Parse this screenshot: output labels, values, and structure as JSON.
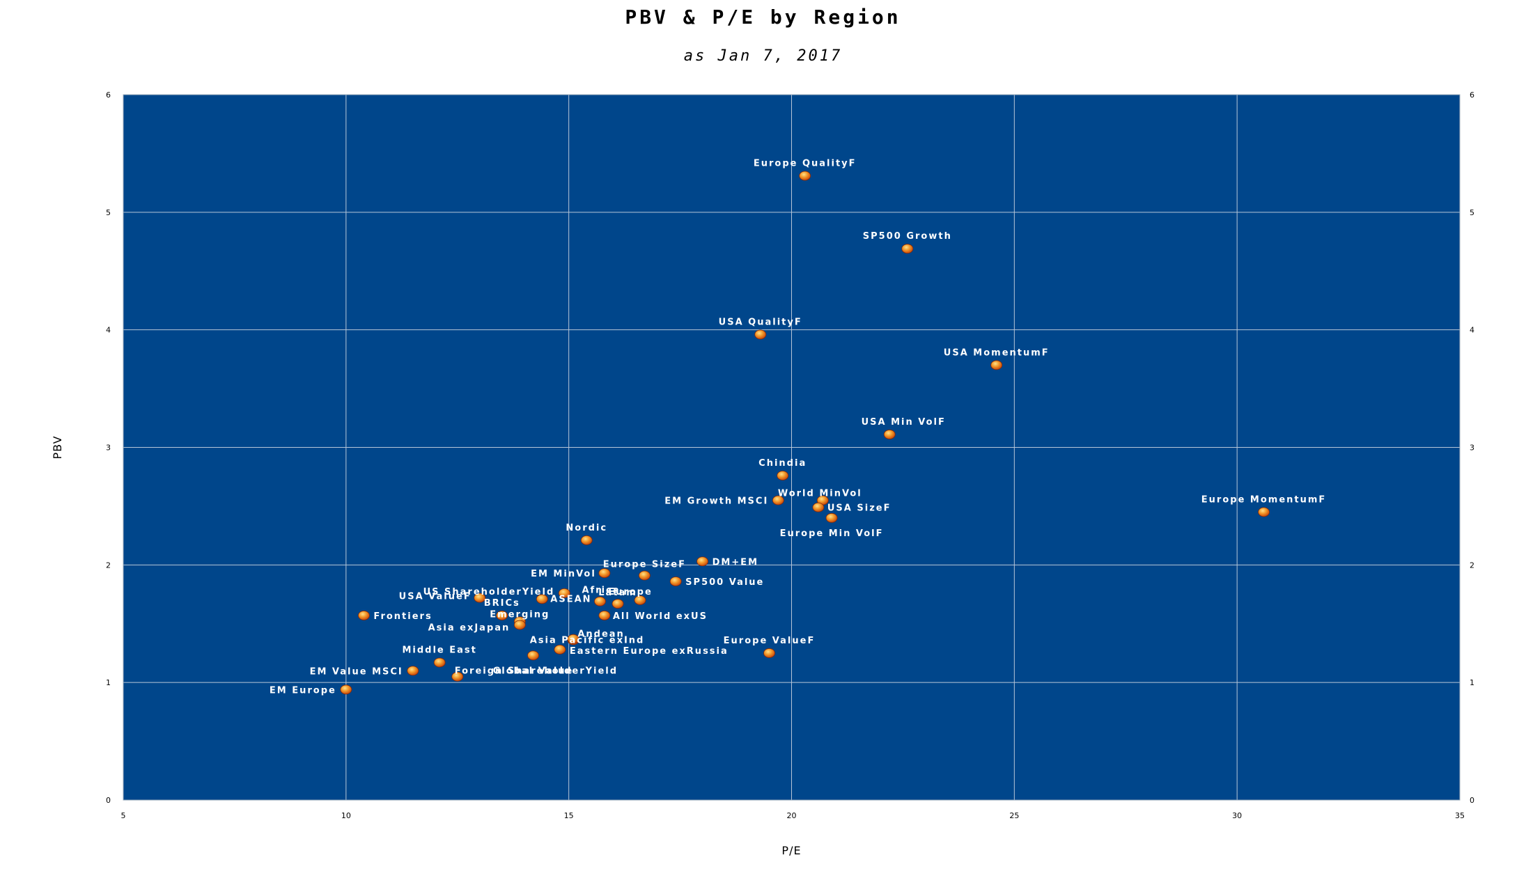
{
  "chart_data": {
    "type": "scatter",
    "title": "PBV & P/E by Region",
    "subtitle": "as Jan 7, 2017",
    "xlabel": "P/E",
    "ylabel": "PBV",
    "xlim": [
      5,
      35
    ],
    "ylim": [
      0,
      6
    ],
    "x_ticks": [
      "5",
      "10",
      "15",
      "20",
      "25",
      "30",
      "35"
    ],
    "y_ticks": [
      "0",
      "1",
      "2",
      "3",
      "4",
      "5",
      "6"
    ],
    "grid": true,
    "plot_background": "#00468b",
    "marker_color": "#f07020",
    "points": [
      {
        "label": "Europe QualityF",
        "x": 20.3,
        "y": 5.31
      },
      {
        "label": "SP500 Growth",
        "x": 22.6,
        "y": 4.69
      },
      {
        "label": "USA QualityF",
        "x": 19.3,
        "y": 3.96
      },
      {
        "label": "USA MomentumF",
        "x": 24.6,
        "y": 3.7
      },
      {
        "label": "USA Min VolF",
        "x": 22.2,
        "y": 3.11
      },
      {
        "label": "Chindia",
        "x": 19.8,
        "y": 2.76
      },
      {
        "label": "Europe MomentumF",
        "x": 30.6,
        "y": 2.45
      },
      {
        "label": "World MinVol",
        "x": 20.7,
        "y": 2.55
      },
      {
        "label": "EM Growth MSCI",
        "x": 19.7,
        "y": 2.55
      },
      {
        "label": "USA SizeF",
        "x": 20.6,
        "y": 2.49
      },
      {
        "label": "Europe Min VolF",
        "x": 20.9,
        "y": 2.4
      },
      {
        "label": "Nordic",
        "x": 15.4,
        "y": 2.21
      },
      {
        "label": "DM+EM",
        "x": 18.0,
        "y": 2.03
      },
      {
        "label": "Europe SizeF",
        "x": 16.7,
        "y": 1.91
      },
      {
        "label": "EM MinVol",
        "x": 15.8,
        "y": 1.93
      },
      {
        "label": "SP500 Value",
        "x": 17.4,
        "y": 1.86
      },
      {
        "label": "Africa",
        "x": 15.7,
        "y": 1.69
      },
      {
        "label": "Europe",
        "x": 16.6,
        "y": 1.7
      },
      {
        "label": "Latam",
        "x": 16.1,
        "y": 1.67
      },
      {
        "label": "US ShareholderYield",
        "x": 14.9,
        "y": 1.76
      },
      {
        "label": "ASEAN",
        "x": 14.4,
        "y": 1.71
      },
      {
        "label": "USA ValueF",
        "x": 13.0,
        "y": 1.72
      },
      {
        "label": "BRICs",
        "x": 13.5,
        "y": 1.57
      },
      {
        "label": "Emerging",
        "x": 13.9,
        "y": 1.52
      },
      {
        "label": "Frontiers",
        "x": 10.4,
        "y": 1.57
      },
      {
        "label": "All World exUS",
        "x": 15.8,
        "y": 1.57
      },
      {
        "label": "Asia exJapan",
        "x": 13.9,
        "y": 1.49
      },
      {
        "label": "Asia Pacific exInd",
        "x": 15.1,
        "y": 1.36
      },
      {
        "label": "Andean",
        "x": 15.1,
        "y": 1.37
      },
      {
        "label": "Eastern Europe exRussia",
        "x": 14.8,
        "y": 1.28
      },
      {
        "label": "Europe ValueF",
        "x": 19.5,
        "y": 1.25
      },
      {
        "label": "Middle East",
        "x": 12.1,
        "y": 1.17
      },
      {
        "label": "EM Value MSCI",
        "x": 11.5,
        "y": 1.1
      },
      {
        "label": "Foreign ShareholderYield",
        "x": 12.5,
        "y": 1.05
      },
      {
        "label": "EM Europe",
        "x": 10.0,
        "y": 0.94
      },
      {
        "label": "Global Value",
        "x": 14.2,
        "y": 1.23
      }
    ]
  }
}
